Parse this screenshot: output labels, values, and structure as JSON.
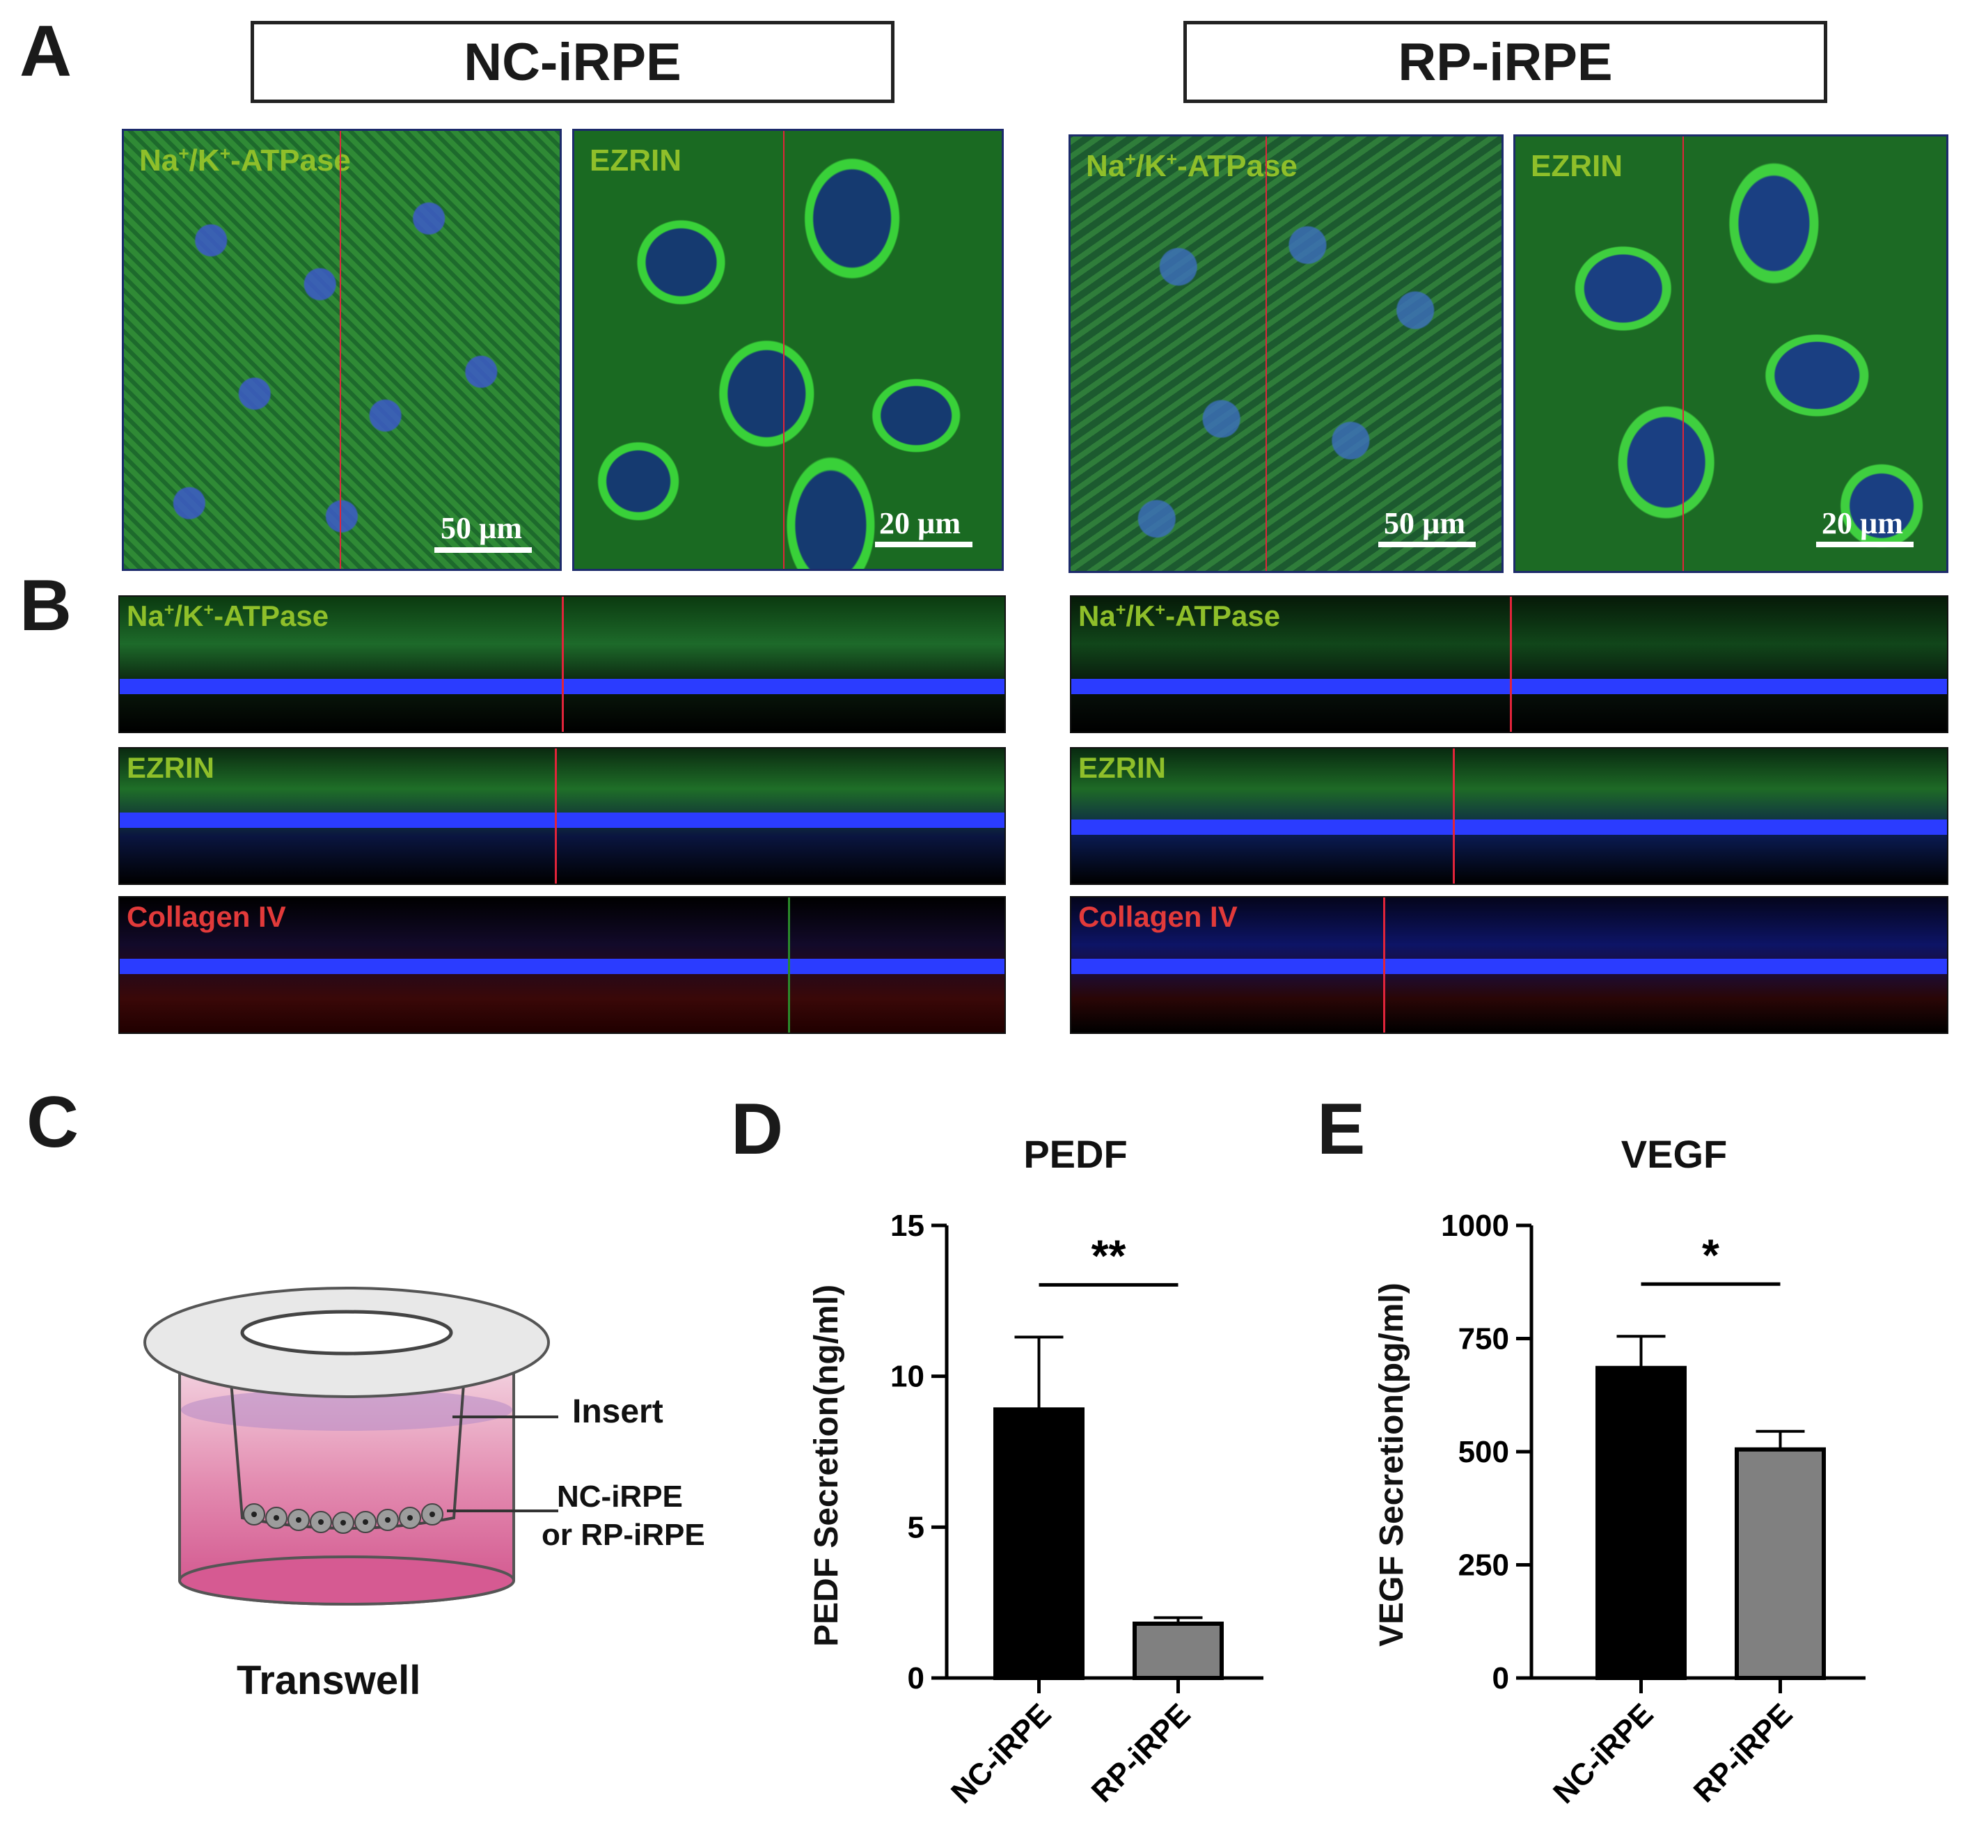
{
  "panels": {
    "A": "A",
    "B": "B",
    "C": "C",
    "D": "D",
    "E": "E"
  },
  "groups": {
    "nc": "NC-iRPE",
    "rp": "RP-iRPE"
  },
  "panel_a": {
    "nc": [
      {
        "label_main": "Na",
        "label_sup1": "+",
        "label_mid": "/K",
        "label_sup2": "+",
        "label_end": "-ATPase",
        "scale": "50 µm"
      },
      {
        "label": "EZRIN",
        "scale": "20 µm"
      }
    ],
    "rp": [
      {
        "label_main": "Na",
        "label_sup1": "+",
        "label_mid": "/K",
        "label_sup2": "+",
        "label_end": "-ATPase",
        "scale": "50 µm"
      },
      {
        "label": "EZRIN",
        "scale": "20 µm"
      }
    ]
  },
  "panel_b": {
    "strips": [
      {
        "label_main": "Na",
        "label_sup1": "+",
        "label_mid": "/K",
        "label_sup2": "+",
        "label_end": "-ATPase"
      },
      {
        "label": "EZRIN"
      },
      {
        "label": "Collagen IV"
      }
    ]
  },
  "panel_c": {
    "insert_label": "Insert",
    "cells_label_line1": "NC-iRPE",
    "cells_label_line2": "or RP-iRPE",
    "caption": "Transwell"
  },
  "chart_data": [
    {
      "type": "bar",
      "title": "PEDF",
      "ylabel": "PEDF Secretion(ng/ml)",
      "categories": [
        "NC-iRPE",
        "RP-iRPE"
      ],
      "values": [
        8.9,
        1.8
      ],
      "error_upper": [
        11.3,
        2.0
      ],
      "ylim": [
        0,
        15
      ],
      "yticks": [
        "0",
        "5",
        "10",
        "15"
      ],
      "significance": "**",
      "bar_colors": [
        "#000000",
        "#808080"
      ]
    },
    {
      "type": "bar",
      "title": "VEGF",
      "ylabel": "VEGF Secretion(pg/ml)",
      "categories": [
        "NC-iRPE",
        "RP-iRPE"
      ],
      "values": [
        685,
        505
      ],
      "error_upper": [
        755,
        545
      ],
      "ylim": [
        0,
        1000
      ],
      "yticks": [
        "0",
        "250",
        "500",
        "750",
        "1000"
      ],
      "significance": "*",
      "bar_colors": [
        "#000000",
        "#808080"
      ]
    }
  ]
}
